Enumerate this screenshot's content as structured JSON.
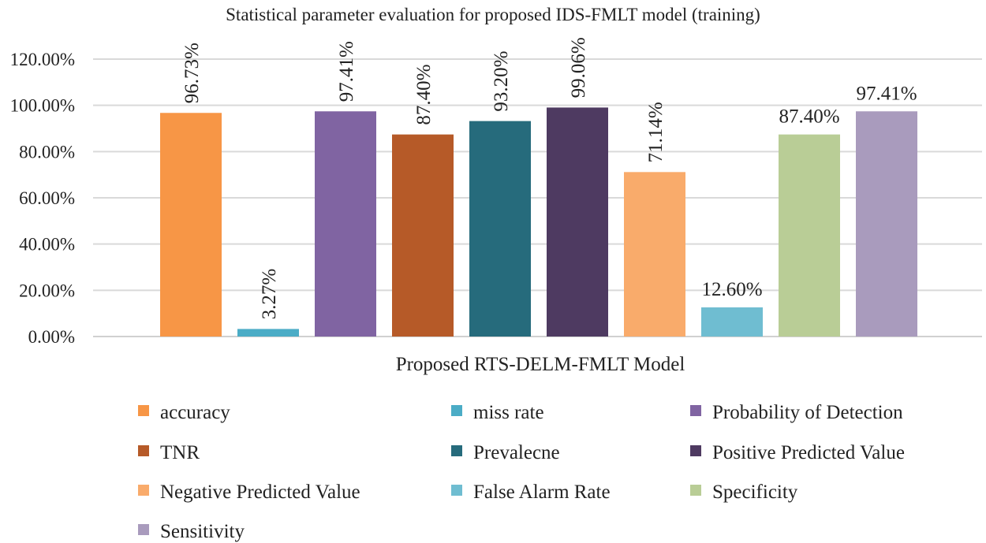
{
  "chart_data": {
    "type": "bar",
    "title": "Statistical parameter evaluation for proposed IDS-FMLT model (training)",
    "xlabel": "Proposed RTS-DELM-FMLT Model",
    "ylabel": "",
    "ylim": [
      0,
      120
    ],
    "yticks": [
      "0.00%",
      "20.00%",
      "40.00%",
      "60.00%",
      "80.00%",
      "100.00%",
      "120.00%"
    ],
    "grid": true,
    "legend_position": "bottom",
    "series": [
      {
        "name": "accuracy",
        "value": 96.73,
        "label": "96.73%",
        "color": "#F79646",
        "label_rotated": true
      },
      {
        "name": "miss rate",
        "value": 3.27,
        "label": "3.27%",
        "color": "#4BACC6",
        "label_rotated": true
      },
      {
        "name": "Probability of Detection",
        "value": 97.41,
        "label": "97.41%",
        "color": "#8064A2",
        "label_rotated": true
      },
      {
        "name": "TNR",
        "value": 87.4,
        "label": "87.40%",
        "color": "#B65A28",
        "label_rotated": true
      },
      {
        "name": "Prevalecne",
        "value": 93.2,
        "label": "93.20%",
        "color": "#266B7C",
        "label_rotated": true
      },
      {
        "name": "Positive Predicted Value",
        "value": 99.06,
        "label": "99.06%",
        "color": "#4E3A61",
        "label_rotated": true
      },
      {
        "name": "Negative Predicted Value",
        "value": 71.14,
        "label": "71.14%",
        "color": "#F9AB6B",
        "label_rotated": true
      },
      {
        "name": "False Alarm Rate",
        "value": 12.6,
        "label": "12.60%",
        "color": "#6FBDD1",
        "label_rotated": false
      },
      {
        "name": "Specificity",
        "value": 87.4,
        "label": "87.40%",
        "color": "#B9CD96",
        "label_rotated": false
      },
      {
        "name": "Sensitivity",
        "value": 97.41,
        "label": "97.41%",
        "color": "#A99BBD",
        "label_rotated": false
      }
    ]
  }
}
